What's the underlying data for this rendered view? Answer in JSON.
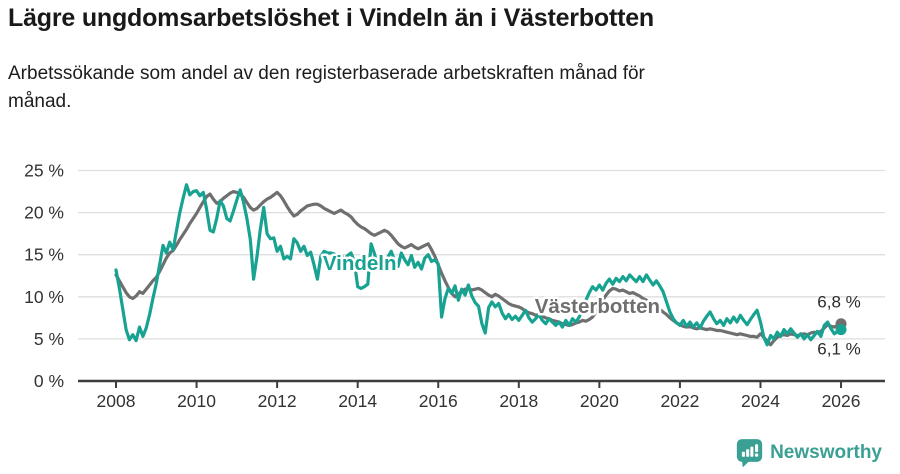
{
  "header": {
    "title": "Lägre ungdomsarbetslöshet i Vindeln än i Västerbotten",
    "subtitle": "Arbetssökande som andel av den registerbaserade arbetskraften månad för\nmånad."
  },
  "footer": {
    "brand": "Newsworthy",
    "logo_icon": "speech-bubble-bar-chart-icon",
    "brand_color": "#3BA094"
  },
  "colors": {
    "vindeln": "#17A292",
    "vasterbotten": "#6F6F6F",
    "grid": "#DEDEDE",
    "axis": "#3D3D3D",
    "tick_text": "#333333",
    "end_label_text": "#2B2B2B"
  },
  "chart_data": {
    "type": "line",
    "title": "Lägre ungdomsarbetslöshet i Vindeln än i Västerbotten",
    "xlabel": "",
    "ylabel": "",
    "ylim": [
      0,
      25
    ],
    "grid": true,
    "legend": "inline-labels",
    "x_ticks": [
      "2008",
      "2010",
      "2012",
      "2014",
      "2016",
      "2018",
      "2020",
      "2022",
      "2024",
      "2026"
    ],
    "y_tick_values": [
      0,
      5,
      10,
      15,
      20,
      25
    ],
    "y_tick_labels": [
      "0 %",
      "5 %",
      "10 %",
      "15 %",
      "20 %",
      "25 %"
    ],
    "start_year": 2008,
    "points_per_year": 12,
    "annotations": [
      {
        "text": "Vindeln",
        "year": 2014.05,
        "value": 14.0,
        "color": "#17A292"
      },
      {
        "text": "Västerbotten",
        "year": 2019.95,
        "value": 8.9,
        "color": "#6F6F6F"
      }
    ],
    "series": [
      {
        "name": "Västerbotten",
        "color": "#6F6F6F",
        "end_label": "6,8 %",
        "end_label_side": "above",
        "values": [
          12.6,
          11.9,
          11.2,
          10.5,
          10.0,
          9.8,
          10.1,
          10.6,
          10.4,
          10.9,
          11.4,
          11.9,
          12.3,
          13.0,
          13.8,
          14.6,
          15.2,
          15.5,
          16.1,
          16.8,
          17.4,
          18.0,
          18.7,
          19.3,
          19.9,
          20.6,
          21.3,
          21.9,
          22.2,
          21.6,
          21.1,
          21.3,
          21.7,
          22.0,
          22.3,
          22.5,
          22.4,
          22.2,
          21.8,
          21.2,
          20.6,
          20.3,
          20.5,
          20.9,
          21.3,
          21.6,
          21.8,
          22.1,
          22.4,
          22.0,
          21.4,
          20.7,
          20.1,
          19.6,
          19.8,
          20.2,
          20.5,
          20.8,
          20.9,
          21.0,
          21.0,
          20.8,
          20.5,
          20.3,
          20.1,
          19.9,
          20.1,
          20.3,
          20.0,
          19.8,
          19.5,
          19.0,
          18.6,
          18.3,
          18.1,
          17.8,
          17.5,
          17.3,
          17.5,
          17.7,
          17.9,
          17.7,
          17.3,
          16.8,
          16.3,
          16.0,
          15.8,
          16.0,
          16.2,
          15.9,
          15.7,
          15.9,
          16.1,
          16.3,
          15.6,
          14.8,
          13.8,
          12.8,
          11.9,
          11.1,
          10.4,
          10.0,
          10.3,
          10.7,
          10.9,
          11.0,
          10.8,
          10.9,
          11.0,
          10.8,
          10.5,
          10.2,
          10.0,
          10.3,
          10.1,
          9.8,
          9.5,
          9.2,
          9.0,
          8.9,
          8.8,
          8.6,
          8.3,
          8.1,
          8.0,
          7.8,
          7.9,
          7.7,
          7.5,
          7.4,
          7.2,
          7.1,
          7.0,
          6.8,
          6.7,
          6.6,
          6.7,
          6.9,
          7.0,
          7.2,
          7.1,
          7.3,
          7.6,
          8.2,
          9.0,
          9.6,
          10.2,
          10.7,
          11.0,
          10.9,
          10.7,
          10.8,
          10.6,
          10.4,
          10.5,
          10.3,
          10.1,
          9.8,
          9.6,
          9.3,
          9.0,
          8.8,
          8.5,
          8.2,
          7.9,
          7.5,
          7.2,
          6.9,
          6.7,
          6.5,
          6.4,
          6.5,
          6.3,
          6.2,
          6.3,
          6.2,
          6.1,
          6.2,
          6.1,
          6.0,
          6.0,
          5.9,
          5.8,
          5.7,
          5.6,
          5.5,
          5.6,
          5.5,
          5.4,
          5.3,
          5.3,
          5.2,
          5.6,
          5.2,
          4.7,
          4.3,
          4.8,
          5.2,
          5.4,
          5.5,
          5.4,
          5.6,
          5.5,
          5.4,
          5.5,
          5.6,
          5.5,
          5.7,
          5.8,
          5.7,
          5.9,
          6.3,
          6.7,
          6.5,
          6.4,
          6.6,
          6.8
        ]
      },
      {
        "name": "Vindeln",
        "color": "#17A292",
        "end_label": "6,1 %",
        "end_label_side": "below",
        "values": [
          13.2,
          11.0,
          8.6,
          6.1,
          4.9,
          5.5,
          4.8,
          6.4,
          5.3,
          6.3,
          7.9,
          9.8,
          11.6,
          13.8,
          16.1,
          15.2,
          16.5,
          15.6,
          17.8,
          20.0,
          21.7,
          23.3,
          22.1,
          22.5,
          22.6,
          22.0,
          22.4,
          20.4,
          17.9,
          17.7,
          19.3,
          21.4,
          20.8,
          19.3,
          19.0,
          20.2,
          21.5,
          22.7,
          21.2,
          19.3,
          16.8,
          12.1,
          14.8,
          18.0,
          20.6,
          17.5,
          16.9,
          17.0,
          15.4,
          16.0,
          14.5,
          14.8,
          14.5,
          16.9,
          16.4,
          15.4,
          16.0,
          14.9,
          15.3,
          13.8,
          12.1,
          14.8,
          15.4,
          15.2,
          15.2,
          15.1,
          14.6,
          15.0,
          14.4,
          14.9,
          15.2,
          14.2,
          11.2,
          11.0,
          11.2,
          11.5,
          16.3,
          15.1,
          13.6,
          14.1,
          13.4,
          14.7,
          15.4,
          14.3,
          13.6,
          15.2,
          14.4,
          13.8,
          14.9,
          13.5,
          14.1,
          13.3,
          14.6,
          15.0,
          14.2,
          14.4,
          13.9,
          7.6,
          9.8,
          11.0,
          10.4,
          11.3,
          9.6,
          10.9,
          10.2,
          11.4,
          10.1,
          9.3,
          8.9,
          6.8,
          5.7,
          8.7,
          9.4,
          8.8,
          9.2,
          8.1,
          7.4,
          7.9,
          7.3,
          7.7,
          7.2,
          7.8,
          8.4,
          7.5,
          7.0,
          7.4,
          7.9,
          7.2,
          6.8,
          7.4,
          7.0,
          6.6,
          7.0,
          6.4,
          7.2,
          6.6,
          7.4,
          7.0,
          7.6,
          8.6,
          9.6,
          10.5,
          11.2,
          10.8,
          11.4,
          10.8,
          11.6,
          12.1,
          11.5,
          12.2,
          11.8,
          12.4,
          11.9,
          12.6,
          12.2,
          11.8,
          12.4,
          11.8,
          12.6,
          12.0,
          11.4,
          11.9,
          11.3,
          10.6,
          9.4,
          8.2,
          7.4,
          6.9,
          6.6,
          7.2,
          6.5,
          7.0,
          6.4,
          6.9,
          6.3,
          7.1,
          7.7,
          8.2,
          7.4,
          6.8,
          7.2,
          6.6,
          7.4,
          6.9,
          7.6,
          7.0,
          7.8,
          7.2,
          6.7,
          7.3,
          7.9,
          8.4,
          7.0,
          5.2,
          4.3,
          5.4,
          5.0,
          5.8,
          5.3,
          6.1,
          5.6,
          6.2,
          5.7,
          5.2,
          5.6,
          5.0,
          5.5,
          4.9,
          5.4,
          5.9,
          5.3,
          6.6,
          7.0,
          6.2,
          5.6,
          5.9,
          6.1
        ]
      }
    ]
  }
}
